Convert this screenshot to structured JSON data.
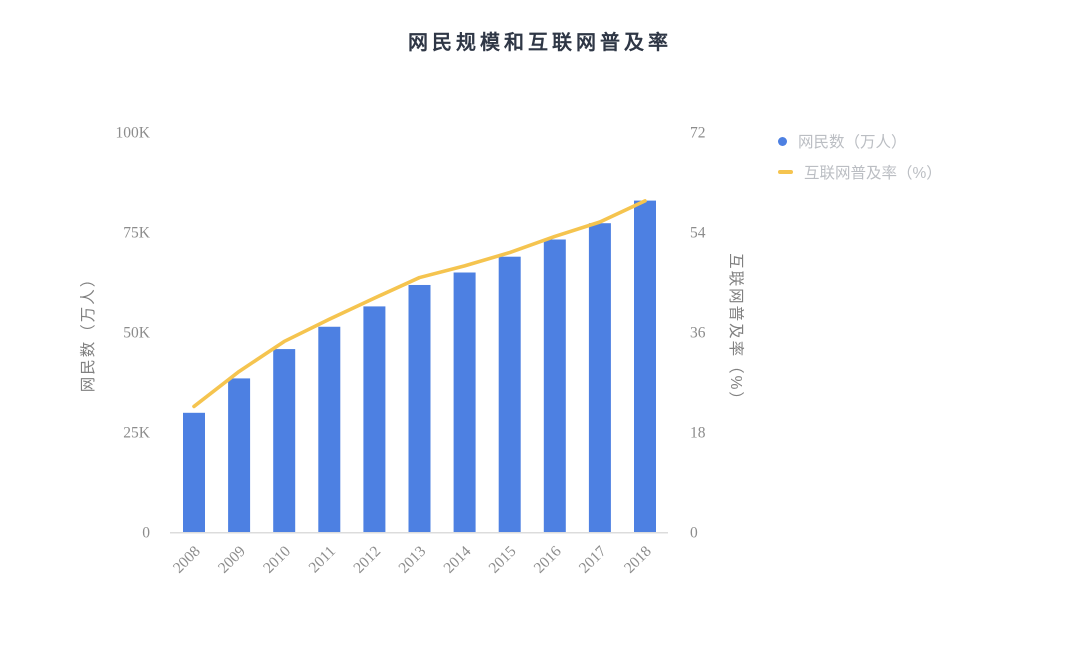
{
  "title": "网民规模和互联网普及率",
  "legend": [
    {
      "label": "网民数（万人）",
      "marker": "circle",
      "color": "#4D80E2"
    },
    {
      "label": "互联网普及率（%）",
      "marker": "dash",
      "color": "#F5C44F"
    }
  ],
  "chart_data": {
    "type": "bar",
    "title": "网民规模和互联网普及率",
    "categories": [
      "2008",
      "2009",
      "2010",
      "2011",
      "2012",
      "2013",
      "2014",
      "2015",
      "2016",
      "2017",
      "2018"
    ],
    "series": [
      {
        "name": "网民数（万人）",
        "type": "bar",
        "axis": "left",
        "color": "#4D80E2",
        "values": [
          29800,
          38400,
          45730,
          51310,
          56400,
          61758,
          64875,
          68826,
          73125,
          77198,
          82851
        ]
      },
      {
        "name": "互联网普及率（%）",
        "type": "line",
        "axis": "right",
        "color": "#F5C44F",
        "values": [
          22.6,
          28.9,
          34.3,
          38.3,
          42.1,
          45.8,
          47.9,
          50.3,
          53.2,
          55.8,
          59.6
        ]
      }
    ],
    "left_axis": {
      "title": "网民数（万人）",
      "tick_labels": [
        "0",
        "25K",
        "50K",
        "75K",
        "100K"
      ],
      "min": 0,
      "max": 100000
    },
    "right_axis": {
      "title": "互联网普及率（%）",
      "tick_labels": [
        "0",
        "18",
        "36",
        "54",
        "72"
      ],
      "min": 0,
      "max": 72
    },
    "grid": false,
    "legend_position": "top-right"
  },
  "colors": {
    "bar": "#4D80E2",
    "line": "#F5C44F",
    "title": "#2F3746",
    "tick_text": "#8C8C8C",
    "axis_title_text": "#808080",
    "legend_text": "#BBBEC3",
    "axis_line": "#DCDCDC"
  }
}
